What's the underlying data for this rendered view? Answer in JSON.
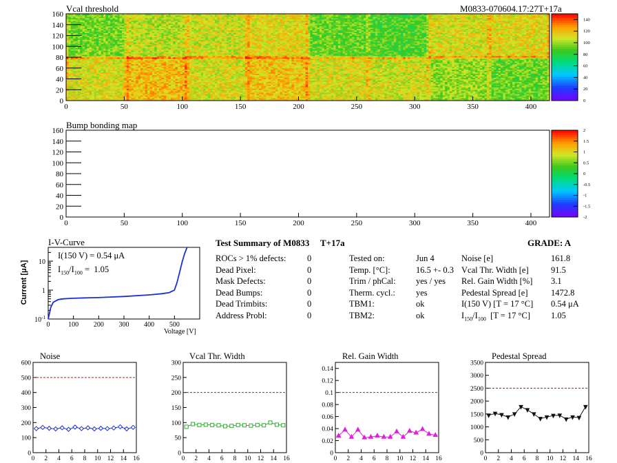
{
  "header": {
    "map1_title": "Vcal threshold",
    "run_id": "M0833-070604.17:27T+17a",
    "map2_title": "Bump bonding map"
  },
  "colors": {
    "noise": "#1a2fd0",
    "vcal": "#2eaa2e",
    "gain": "#e020d8",
    "pedestal": "#111111",
    "iv": "#1a2fd0",
    "limit": "#cc1111"
  },
  "chart_data": [
    {
      "id": "vcal_map",
      "type": "heatmap",
      "title": "Vcal threshold",
      "x_ticks": [
        "0",
        "50",
        "100",
        "150",
        "200",
        "250",
        "300",
        "350",
        "400"
      ],
      "y_ticks": [
        "0",
        "20",
        "40",
        "60",
        "80",
        "100",
        "120",
        "140",
        "160"
      ],
      "xlim": [
        0,
        416
      ],
      "ylim": [
        0,
        160
      ],
      "z_ticks": [
        "0",
        "20",
        "40",
        "60",
        "80",
        "100",
        "120",
        "140"
      ],
      "z_range": [
        0,
        150
      ],
      "roc_mean_top": [
        95,
        105,
        108,
        112,
        92,
        88,
        110,
        112
      ],
      "roc_mean_bottom": [
        110,
        120,
        110,
        118,
        110,
        108,
        100,
        92
      ]
    },
    {
      "id": "bump_map",
      "type": "heatmap",
      "title": "Bump bonding map",
      "x_ticks": [
        "0",
        "50",
        "100",
        "150",
        "200",
        "250",
        "300",
        "350",
        "400"
      ],
      "y_ticks": [
        "0",
        "20",
        "40",
        "60",
        "80",
        "100",
        "120",
        "140",
        "160"
      ],
      "xlim": [
        0,
        416
      ],
      "ylim": [
        0,
        160
      ],
      "z_ticks": [
        "-2",
        "-1.5",
        "-1",
        "-0.5",
        "0",
        "0.5",
        "1",
        "1.5",
        "2"
      ],
      "z_range": [
        -2,
        2
      ]
    },
    {
      "id": "iv_curve",
      "type": "line",
      "title": "I-V-Curve",
      "xlabel": "Voltage [V]",
      "ylabel": "Current [μA]",
      "log_y": true,
      "xlim": [
        0,
        600
      ],
      "ylim": [
        0.1,
        30
      ],
      "x_ticks": [
        "0",
        "100",
        "200",
        "300",
        "400",
        "500"
      ],
      "annotation_1": "I(150 V) = 0.54 μA",
      "annotation_2_pre": "I",
      "annotation_2_sub1": "150",
      "annotation_2_mid": "/I",
      "annotation_2_sub2": "100",
      "annotation_2_val": " =  1.05",
      "x": [
        0,
        10,
        20,
        40,
        60,
        100,
        150,
        200,
        300,
        400,
        450,
        480,
        500,
        510,
        520,
        530,
        540,
        550
      ],
      "y": [
        0.1,
        0.25,
        0.38,
        0.47,
        0.5,
        0.52,
        0.54,
        0.55,
        0.6,
        0.68,
        0.75,
        0.82,
        1.0,
        1.8,
        4.0,
        9.0,
        18.0,
        30.0
      ]
    },
    {
      "id": "noise_plot",
      "type": "line",
      "title": "Noise",
      "xlim": [
        0,
        16
      ],
      "ylim": [
        0,
        600
      ],
      "y_ticks": [
        0,
        100,
        200,
        300,
        400,
        500,
        600
      ],
      "x_ticks": [
        0,
        2,
        4,
        6,
        8,
        10,
        12,
        14,
        16
      ],
      "limit": 500,
      "x": [
        0.5,
        1.5,
        2.5,
        3.5,
        4.5,
        5.5,
        6.5,
        7.5,
        8.5,
        9.5,
        10.5,
        11.5,
        12.5,
        13.5,
        14.5,
        15.5
      ],
      "y": [
        160,
        168,
        162,
        158,
        165,
        155,
        170,
        160,
        165,
        158,
        162,
        160,
        164,
        172,
        158,
        168
      ],
      "marker": "diamond"
    },
    {
      "id": "vcal_width_plot",
      "type": "line",
      "title": "Vcal Thr. Width",
      "xlim": [
        0,
        16
      ],
      "ylim": [
        0,
        300
      ],
      "y_ticks": [
        0,
        50,
        100,
        150,
        200,
        250,
        300
      ],
      "x_ticks": [
        0,
        2,
        4,
        6,
        8,
        10,
        12,
        14,
        16
      ],
      "limit": 200,
      "x": [
        0.5,
        1.5,
        2.5,
        3.5,
        4.5,
        5.5,
        6.5,
        7.5,
        8.5,
        9.5,
        10.5,
        11.5,
        12.5,
        13.5,
        14.5,
        15.5
      ],
      "y": [
        86,
        95,
        92,
        93,
        92,
        91,
        88,
        89,
        92,
        91,
        90,
        92,
        91,
        100,
        93,
        91
      ],
      "marker": "square"
    },
    {
      "id": "gain_width_plot",
      "type": "line",
      "title": "Rel. Gain Width",
      "xlim": [
        0,
        16
      ],
      "ylim": [
        0,
        0.15
      ],
      "y_ticks": [
        0,
        0.02,
        0.04,
        0.06,
        0.08,
        0.1,
        0.12,
        0.14
      ],
      "x_ticks": [
        0,
        2,
        4,
        6,
        8,
        10,
        12,
        14,
        16
      ],
      "limit": 0.1,
      "x": [
        0.5,
        1.5,
        2.5,
        3.5,
        4.5,
        5.5,
        6.5,
        7.5,
        8.5,
        9.5,
        10.5,
        11.5,
        12.5,
        13.5,
        14.5,
        15.5
      ],
      "y": [
        0.028,
        0.038,
        0.026,
        0.038,
        0.025,
        0.026,
        0.028,
        0.026,
        0.026,
        0.035,
        0.026,
        0.036,
        0.033,
        0.039,
        0.031,
        0.029
      ],
      "marker": "triangle"
    },
    {
      "id": "pedestal_plot",
      "type": "line",
      "title": "Pedestal Spread",
      "xlim": [
        0,
        16
      ],
      "ylim": [
        0,
        3500
      ],
      "y_ticks": [
        0,
        500,
        1000,
        1500,
        2000,
        2500,
        3000,
        3500
      ],
      "x_ticks": [
        0,
        2,
        4,
        6,
        8,
        10,
        12,
        14,
        16
      ],
      "limit": 2500,
      "x": [
        0.5,
        1.5,
        2.5,
        3.5,
        4.5,
        5.5,
        6.5,
        7.5,
        8.5,
        9.5,
        10.5,
        11.5,
        12.5,
        13.5,
        14.5,
        15.5
      ],
      "y": [
        1450,
        1520,
        1470,
        1380,
        1500,
        1780,
        1660,
        1500,
        1320,
        1380,
        1440,
        1450,
        1300,
        1380,
        1360,
        1780
      ],
      "marker": "triangle-down"
    }
  ],
  "summary": {
    "title": "Test Summary of M0833",
    "tag": "T+17a",
    "grade": "GRADE:  A",
    "col1": [
      {
        "label": "ROCs > 1% defects:",
        "value": "0"
      },
      {
        "label": "Dead Pixel:",
        "value": "0"
      },
      {
        "label": "Mask Defects:",
        "value": "0"
      },
      {
        "label": "Dead Bumps:",
        "value": "0"
      },
      {
        "label": "Dead Trimbits:",
        "value": "0"
      },
      {
        "label": "Address Probl:",
        "value": "0"
      }
    ],
    "col2": [
      {
        "label": "Tested on:",
        "value": "Jun 4"
      },
      {
        "label": "Temp. [°C]:",
        "value": "16.5 +- 0.3"
      },
      {
        "label": "Trim / phCal:",
        "value": "yes / yes"
      },
      {
        "label": "Therm. cycl.:",
        "value": "yes"
      },
      {
        "label": "TBM1:",
        "value": "ok"
      },
      {
        "label": "TBM2:",
        "value": "ok"
      }
    ],
    "col3": [
      {
        "label": "Noise [e]",
        "value": "161.8"
      },
      {
        "label": "Vcal Thr. Width [e]",
        "value": "91.5"
      },
      {
        "label": "Rel. Gain Width [%]",
        "value": "3.1"
      },
      {
        "label": "Pedestal Spread [e]",
        "value": "1472.8"
      },
      {
        "label": "I(150 V) [T = 17 °C]",
        "value": "0.54 μA"
      },
      {
        "label_pre": "I",
        "label_sub1": "150",
        "label_mid": "/I",
        "label_sub2": "100",
        "label_post": "  [T = 17 °C]",
        "value": "1.05"
      }
    ]
  }
}
